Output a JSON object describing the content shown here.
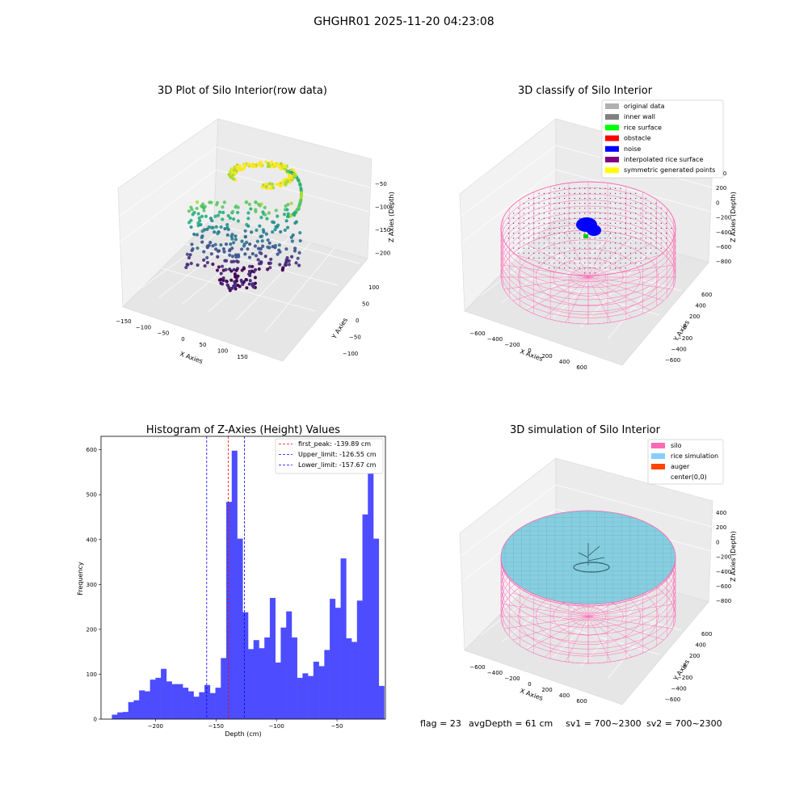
{
  "figure_title": "GHGHR01 2025-11-20 04:23:08",
  "colors": {
    "histogram_bar": "#4d4dff",
    "peak_line": "#ff0000",
    "limit_line": "#0000ff",
    "silo_wire": "#ff69b4",
    "rice_fill": "#87cfe0",
    "noise_blob": "#0000ff",
    "pane": "#f2f2f2"
  },
  "panels": {
    "raw": {
      "title": "3D Plot of Silo Interior(row data)",
      "xlabel": "X Axies",
      "ylabel": "Y Axies",
      "zlabel": "Z Axies (Depth)",
      "xticks": [
        "−150",
        "−100",
        "−50",
        "0",
        "50",
        "100",
        "150"
      ],
      "yticks": [
        "100",
        "50",
        "0",
        "−50",
        "−100"
      ],
      "zticks": [
        "−50",
        "−100",
        "−150",
        "−200"
      ]
    },
    "classify": {
      "title": "3D classify of Silo Interior",
      "xlabel": "X Axies",
      "ylabel": "Y Axies",
      "zlabel": "Z Axies (Depth)",
      "xticks": [
        "−600",
        "−400",
        "−200",
        "0",
        "200",
        "400",
        "600"
      ],
      "yticks": [
        "600",
        "400",
        "200",
        "0",
        "−200",
        "−400",
        "−600"
      ],
      "zticks": [
        "400",
        "200",
        "0",
        "−200",
        "−400",
        "−600",
        "−800"
      ],
      "legend": [
        {
          "label": "original data",
          "color": "#b0b0b0"
        },
        {
          "label": "inner wall",
          "color": "#808080"
        },
        {
          "label": "rice surface",
          "color": "#00ff00"
        },
        {
          "label": "obstacle",
          "color": "#ff0000"
        },
        {
          "label": "noise",
          "color": "#0000ff"
        },
        {
          "label": "interpolated rice surface",
          "color": "#800080"
        },
        {
          "label": "symmetric generated points",
          "color": "#ffff00"
        }
      ]
    },
    "simulation": {
      "title": "3D simulation of Silo Interior",
      "xlabel": "X Axies",
      "ylabel": "Y Axies",
      "zlabel": "Z Axies (Depth)",
      "xticks": [
        "−600",
        "−400",
        "−200",
        "0",
        "200",
        "400",
        "600"
      ],
      "yticks": [
        "600",
        "400",
        "200",
        "0",
        "−200",
        "−400",
        "−600"
      ],
      "zticks": [
        "400",
        "200",
        "0",
        "−200",
        "−400",
        "−600",
        "−800"
      ],
      "legend": [
        {
          "label": "silo",
          "color": "#ff69b4"
        },
        {
          "label": "rice simulation",
          "color": "#87cefa"
        },
        {
          "label": "auger",
          "color": "#ff4500"
        },
        {
          "label": "center(0,0)",
          "color": ""
        }
      ]
    }
  },
  "chart_data": {
    "type": "bar",
    "title": "Histogram of Z-Axies (Height) Values",
    "xlabel": "Depth (cm)",
    "ylabel": "Frequency",
    "xlim": [
      -245,
      -10
    ],
    "ylim": [
      0,
      630
    ],
    "x_start": -236,
    "bin_width": 4.5,
    "values": [
      10,
      15,
      16,
      38,
      42,
      64,
      62,
      88,
      92,
      112,
      84,
      78,
      78,
      70,
      62,
      50,
      60,
      76,
      58,
      70,
      136,
      484,
      598,
      402,
      238,
      156,
      176,
      158,
      182,
      270,
      126,
      204,
      240,
      182,
      92,
      102,
      96,
      128,
      118,
      154,
      268,
      248,
      358,
      180,
      172,
      264,
      456,
      565,
      402,
      74
    ],
    "xticks": [
      -200,
      -150,
      -100,
      -50
    ],
    "xtick_labels": [
      "−200",
      "−150",
      "−100",
      "−50"
    ],
    "yticks": [
      0,
      100,
      200,
      300,
      400,
      500,
      600
    ],
    "vlines": [
      {
        "x": -139.89,
        "label": "first_peak: -139.89 cm",
        "color": "#ff0000"
      },
      {
        "x": -126.55,
        "label": "Upper_limit: -126.55 cm",
        "color": "#0000ff"
      },
      {
        "x": -157.67,
        "label": "Lower_limit: -157.67 cm",
        "color": "#0000ff"
      }
    ],
    "legend_position": "top-right",
    "grid": false
  },
  "footer": {
    "flag": "flag = 23",
    "avg_depth": "avgDepth = 61 cm",
    "sv1": "sv1 = 700~2300",
    "sv2": "sv2 = 700~2300"
  }
}
